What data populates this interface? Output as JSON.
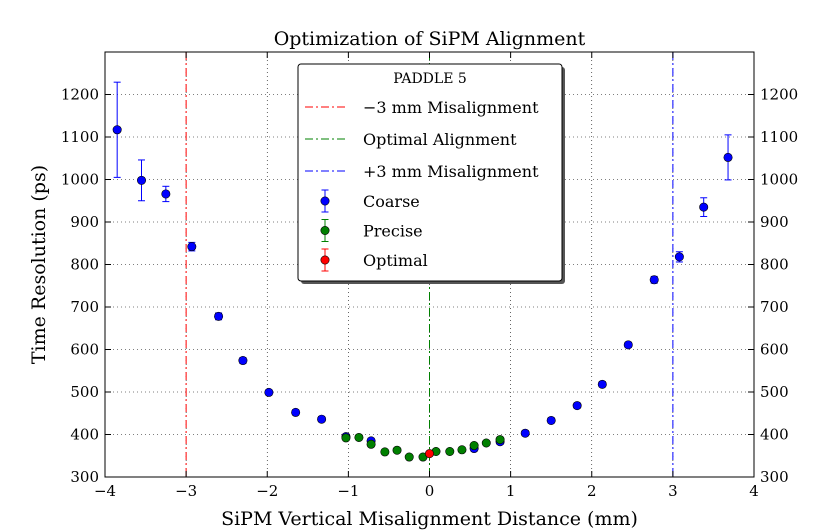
{
  "chart_data": {
    "type": "scatter",
    "title": "Optimization of SiPM Alignment",
    "xlabel": "SiPM Vertical Misalignment Distance (mm)",
    "ylabel": "Time Resolution (ps)",
    "xlim": [
      -4,
      4
    ],
    "ylim": [
      300,
      1300
    ],
    "x_ticks": [
      -4,
      -3,
      -2,
      -1,
      0,
      1,
      2,
      3,
      4
    ],
    "x_tick_labels": [
      "−4",
      "−3",
      "−2",
      "−1",
      "0",
      "1",
      "2",
      "3",
      "4"
    ],
    "y_ticks": [
      300,
      400,
      500,
      600,
      700,
      800,
      900,
      1000,
      1100,
      1200
    ],
    "y_tick_labels": [
      "300",
      "400",
      "500",
      "600",
      "700",
      "800",
      "900",
      "1000",
      "1100",
      "1200"
    ],
    "right_y_tick_labels": true,
    "grid": true,
    "legend": {
      "title": "PADDLE 5",
      "position": "top-center"
    },
    "vertical_lines": [
      {
        "name": "−3 mm Misalignment",
        "x": -3,
        "color": "#ff0000",
        "style": "dash-dot"
      },
      {
        "name": "Optimal Alignment",
        "x": 0,
        "color": "#008000",
        "style": "dash-dot"
      },
      {
        "name": "+3 mm Misalignment",
        "x": 3,
        "color": "#0000ff",
        "style": "dash-dot"
      }
    ],
    "series": [
      {
        "name": "Coarse",
        "color": "#0000ff",
        "points": [
          {
            "x": -3.85,
            "y": 1117,
            "err": 112
          },
          {
            "x": -3.55,
            "y": 998,
            "err": 48
          },
          {
            "x": -3.25,
            "y": 966,
            "err": 18
          },
          {
            "x": -2.93,
            "y": 842,
            "err": 10
          },
          {
            "x": -2.6,
            "y": 678,
            "err": 8
          },
          {
            "x": -2.3,
            "y": 574,
            "err": 7
          },
          {
            "x": -1.98,
            "y": 499,
            "err": 6
          },
          {
            "x": -1.65,
            "y": 452,
            "err": 6
          },
          {
            "x": -1.33,
            "y": 436,
            "err": 6
          },
          {
            "x": -1.03,
            "y": 395,
            "err": 6
          },
          {
            "x": -0.72,
            "y": 385,
            "err": 6
          },
          {
            "x": 0.55,
            "y": 367,
            "err": 6
          },
          {
            "x": 0.87,
            "y": 383,
            "err": 6
          },
          {
            "x": 1.18,
            "y": 403,
            "err": 6
          },
          {
            "x": 1.5,
            "y": 433,
            "err": 6
          },
          {
            "x": 1.82,
            "y": 468,
            "err": 6
          },
          {
            "x": 2.13,
            "y": 518,
            "err": 6
          },
          {
            "x": 2.45,
            "y": 611,
            "err": 6
          },
          {
            "x": 2.77,
            "y": 764,
            "err": 8
          },
          {
            "x": 3.08,
            "y": 818,
            "err": 12
          },
          {
            "x": 3.38,
            "y": 935,
            "err": 22
          },
          {
            "x": 3.68,
            "y": 1052,
            "err": 53
          }
        ]
      },
      {
        "name": "Precise",
        "color": "#008000",
        "points": [
          {
            "x": -1.03,
            "y": 392,
            "err": 5
          },
          {
            "x": -0.87,
            "y": 393,
            "err": 5
          },
          {
            "x": -0.72,
            "y": 377,
            "err": 5
          },
          {
            "x": -0.55,
            "y": 359,
            "err": 5
          },
          {
            "x": -0.4,
            "y": 363,
            "err": 5
          },
          {
            "x": -0.25,
            "y": 347,
            "err": 5
          },
          {
            "x": -0.08,
            "y": 347,
            "err": 5
          },
          {
            "x": 0.08,
            "y": 360,
            "err": 5
          },
          {
            "x": 0.25,
            "y": 360,
            "err": 5
          },
          {
            "x": 0.4,
            "y": 364,
            "err": 5
          },
          {
            "x": 0.55,
            "y": 374,
            "err": 5
          },
          {
            "x": 0.7,
            "y": 380,
            "err": 5
          },
          {
            "x": 0.87,
            "y": 388,
            "err": 5
          }
        ]
      },
      {
        "name": "Optimal",
        "color": "#ff0000",
        "points": [
          {
            "x": 0.0,
            "y": 355,
            "err": 5
          }
        ]
      }
    ]
  }
}
